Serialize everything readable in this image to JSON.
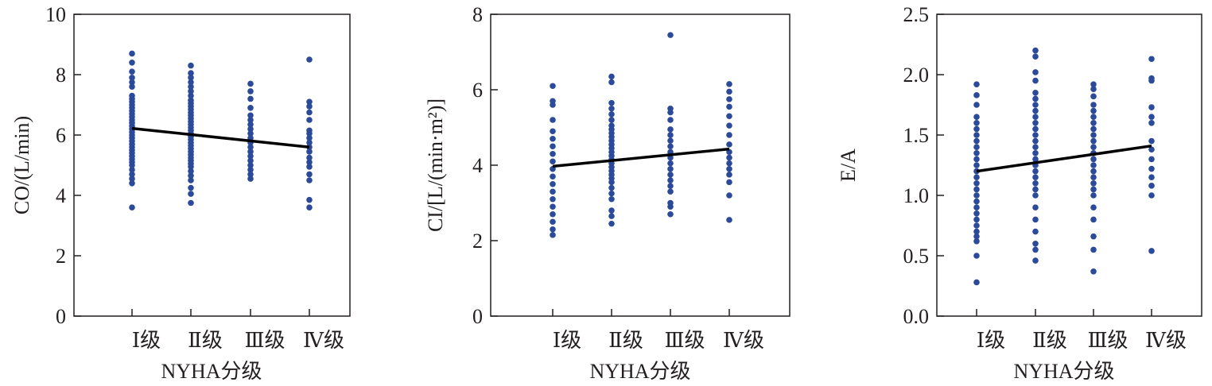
{
  "colors": {
    "points": "#2b4a99",
    "trend": "#000000",
    "axis": "#231f20"
  },
  "chart_data": [
    {
      "type": "scatter",
      "title": "",
      "xlabel": "NYHA分级",
      "ylabel": "CO/(L/min)",
      "categories": [
        "Ⅰ级",
        "Ⅱ级",
        "Ⅲ级",
        "Ⅳ级"
      ],
      "ylim": [
        0,
        10
      ],
      "yticks": [
        "0",
        "2",
        "4",
        "6",
        "8",
        "10"
      ],
      "yticks_values": [
        0,
        2,
        4,
        6,
        8,
        10
      ],
      "grid": false,
      "points": [
        [
          3.6,
          4.4,
          4.55,
          4.7,
          4.85,
          5.0,
          5.1,
          5.2,
          5.3,
          5.4,
          5.5,
          5.6,
          5.7,
          5.8,
          5.9,
          6.0,
          6.1,
          6.2,
          6.3,
          6.4,
          6.5,
          6.6,
          6.7,
          6.8,
          6.9,
          7.0,
          7.1,
          7.2,
          7.3,
          7.6,
          7.75,
          7.9,
          8.1,
          8.4,
          8.7
        ],
        [
          3.75,
          4.05,
          4.25,
          4.5,
          4.65,
          4.8,
          4.95,
          5.05,
          5.15,
          5.25,
          5.35,
          5.45,
          5.55,
          5.65,
          5.75,
          5.85,
          5.95,
          6.05,
          6.15,
          6.25,
          6.35,
          6.45,
          6.55,
          6.65,
          6.75,
          6.85,
          6.95,
          7.05,
          7.15,
          7.3,
          7.45,
          7.6,
          7.75,
          7.9,
          8.05,
          8.3
        ],
        [
          4.55,
          4.7,
          4.85,
          5.0,
          5.15,
          5.3,
          5.45,
          5.6,
          5.75,
          5.9,
          6.05,
          6.2,
          6.35,
          6.5,
          6.65,
          6.9,
          7.2,
          7.45,
          7.7
        ],
        [
          3.6,
          3.85,
          4.5,
          4.7,
          4.95,
          5.1,
          5.25,
          5.45,
          5.6,
          5.75,
          5.9,
          6.05,
          6.15,
          6.5,
          6.75,
          6.95,
          7.1,
          8.5
        ]
      ],
      "trend": [
        6.22,
        5.6
      ]
    },
    {
      "type": "scatter",
      "title": "",
      "xlabel": "NYHA分级",
      "ylabel": "CI/[L/(min·m²)]",
      "categories": [
        "Ⅰ级",
        "Ⅱ级",
        "Ⅲ级",
        "Ⅳ级"
      ],
      "ylim": [
        0,
        8
      ],
      "yticks": [
        "0",
        "2",
        "4",
        "6",
        "8"
      ],
      "yticks_values": [
        0,
        2,
        4,
        6,
        8
      ],
      "grid": false,
      "points": [
        [
          2.15,
          2.3,
          2.5,
          2.7,
          2.9,
          3.1,
          3.3,
          3.5,
          3.7,
          3.9,
          4.1,
          4.3,
          4.5,
          4.7,
          4.9,
          5.2,
          5.6,
          5.7,
          6.1
        ],
        [
          2.45,
          2.65,
          2.8,
          3.1,
          3.25,
          3.4,
          3.55,
          3.65,
          3.75,
          3.85,
          3.95,
          4.05,
          4.15,
          4.25,
          4.35,
          4.45,
          4.55,
          4.65,
          4.75,
          4.85,
          4.95,
          5.05,
          5.2,
          5.35,
          5.5,
          5.65,
          6.2,
          6.35
        ],
        [
          2.7,
          2.9,
          3.0,
          3.3,
          3.45,
          3.6,
          3.75,
          3.9,
          4.05,
          4.2,
          4.35,
          4.5,
          4.65,
          4.8,
          4.95,
          5.2,
          5.4,
          5.5,
          7.45
        ],
        [
          2.55,
          3.2,
          3.55,
          3.75,
          3.9,
          4.05,
          4.2,
          4.35,
          4.55,
          4.8,
          5.05,
          5.3,
          5.55,
          5.75,
          5.95,
          6.15
        ]
      ],
      "trend": [
        3.97,
        4.43
      ]
    },
    {
      "type": "scatter",
      "title": "",
      "xlabel": "NYHA分级",
      "ylabel": "E/A",
      "categories": [
        "Ⅰ级",
        "Ⅱ级",
        "Ⅲ级",
        "Ⅳ级"
      ],
      "ylim": [
        0,
        2.5
      ],
      "yticks": [
        "0.0",
        "0.5",
        "1.0",
        "1.5",
        "2.0",
        "2.5"
      ],
      "yticks_values": [
        0,
        0.5,
        1,
        1.5,
        2,
        2.5
      ],
      "grid": false,
      "points": [
        [
          0.28,
          0.5,
          0.62,
          0.66,
          0.7,
          0.75,
          0.8,
          0.85,
          0.9,
          0.95,
          1.0,
          1.05,
          1.1,
          1.15,
          1.2,
          1.25,
          1.3,
          1.35,
          1.4,
          1.45,
          1.5,
          1.55,
          1.6,
          1.65,
          1.75,
          1.83,
          1.92
        ],
        [
          0.46,
          0.55,
          0.6,
          0.7,
          0.8,
          0.9,
          1.0,
          1.05,
          1.1,
          1.15,
          1.2,
          1.25,
          1.3,
          1.35,
          1.4,
          1.45,
          1.5,
          1.55,
          1.6,
          1.65,
          1.7,
          1.75,
          1.8,
          1.85,
          1.95,
          2.02,
          2.15,
          2.2
        ],
        [
          0.37,
          0.55,
          0.66,
          0.8,
          0.9,
          1.0,
          1.05,
          1.1,
          1.15,
          1.2,
          1.25,
          1.3,
          1.35,
          1.4,
          1.45,
          1.5,
          1.55,
          1.6,
          1.65,
          1.7,
          1.75,
          1.82,
          1.88,
          1.92
        ],
        [
          0.54,
          1.0,
          1.08,
          1.15,
          1.22,
          1.3,
          1.38,
          1.45,
          1.6,
          1.65,
          1.73,
          1.95,
          1.97,
          2.13
        ]
      ],
      "trend": [
        1.2,
        1.41
      ]
    }
  ]
}
